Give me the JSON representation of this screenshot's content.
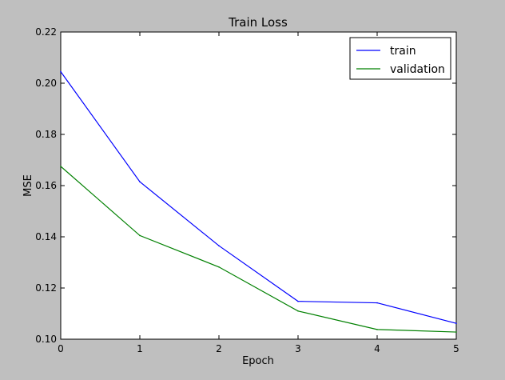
{
  "chart_data": {
    "type": "line",
    "title": "Train Loss",
    "xlabel": "Epoch",
    "ylabel": "MSE",
    "x": [
      0,
      1,
      2,
      3,
      4,
      5
    ],
    "xlim": [
      0,
      5
    ],
    "ylim": [
      0.1,
      0.22
    ],
    "xticks": [
      "0",
      "1",
      "2",
      "3",
      "4",
      "5"
    ],
    "yticks": [
      "0.10",
      "0.12",
      "0.14",
      "0.16",
      "0.18",
      "0.20",
      "0.22"
    ],
    "grid": false,
    "legend_position": "top-right",
    "series": [
      {
        "name": "train",
        "color": "#0000ff",
        "values": [
          0.2045,
          0.1615,
          0.1365,
          0.1148,
          0.1142,
          0.1062
        ]
      },
      {
        "name": "validation",
        "color": "#008000",
        "values": [
          0.1675,
          0.1405,
          0.1282,
          0.111,
          0.1038,
          0.1028
        ]
      }
    ]
  },
  "colors": {
    "figure_background": "#bfbfbf",
    "plot_background": "#ffffff"
  }
}
